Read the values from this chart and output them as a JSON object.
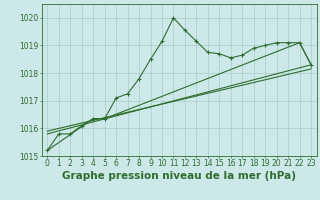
{
  "title": "Graphe pression niveau de la mer (hPa)",
  "bg_color": "#cde8e8",
  "grid_color": "#aacccc",
  "line_color": "#2d6e2d",
  "xlim": [
    -0.5,
    23.5
  ],
  "ylim": [
    1015,
    1020.5
  ],
  "yticks": [
    1015,
    1016,
    1017,
    1018,
    1019,
    1020
  ],
  "xticks": [
    0,
    1,
    2,
    3,
    4,
    5,
    6,
    7,
    8,
    9,
    10,
    11,
    12,
    13,
    14,
    15,
    16,
    17,
    18,
    19,
    20,
    21,
    22,
    23
  ],
  "series1_x": [
    0,
    1,
    2,
    3,
    4,
    5,
    6,
    7,
    8,
    9,
    10,
    11,
    12,
    13,
    14,
    15,
    16,
    17,
    18,
    19,
    20,
    21,
    22,
    23
  ],
  "series1_y": [
    1015.2,
    1015.8,
    1015.8,
    1016.1,
    1016.35,
    1016.35,
    1017.1,
    1017.25,
    1017.8,
    1018.5,
    1019.15,
    1020.0,
    1019.55,
    1019.15,
    1018.75,
    1018.7,
    1018.55,
    1018.65,
    1018.9,
    1019.0,
    1019.1,
    1019.1,
    1019.1,
    1018.3
  ],
  "series2_x": [
    0,
    4,
    5,
    22,
    23
  ],
  "series2_y": [
    1015.2,
    1016.35,
    1016.35,
    1019.1,
    1018.3
  ],
  "series3_x": [
    0,
    23
  ],
  "series3_y": [
    1015.8,
    1018.3
  ],
  "series4_x": [
    0,
    23
  ],
  "series4_y": [
    1015.9,
    1018.15
  ],
  "title_fontsize": 7.5,
  "tick_fontsize": 5.5
}
